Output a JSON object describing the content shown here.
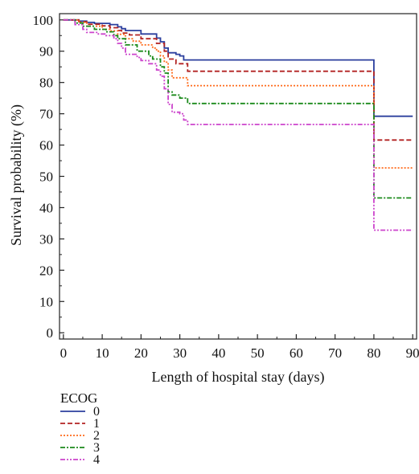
{
  "chart_data": {
    "type": "line",
    "step": true,
    "xlabel": "Length of hospital stay (days)",
    "ylabel": "Survival probability (%)",
    "xlim": [
      -1,
      91
    ],
    "ylim": [
      -2,
      102
    ],
    "xticks": [
      0,
      10,
      20,
      30,
      40,
      50,
      60,
      70,
      80,
      90
    ],
    "yticks": [
      0,
      10,
      20,
      30,
      40,
      50,
      60,
      70,
      80,
      90,
      100
    ],
    "grid": false,
    "legend": {
      "title": "ECOG",
      "placement": "bottom-left"
    },
    "series": [
      {
        "name": "0",
        "color": "#2b3f9e",
        "dash": "solid",
        "points": [
          [
            0,
            100
          ],
          [
            4,
            99.6
          ],
          [
            6,
            99.2
          ],
          [
            8,
            98.9
          ],
          [
            12,
            98.5
          ],
          [
            14,
            97.8
          ],
          [
            15,
            97.2
          ],
          [
            16,
            96.6
          ],
          [
            20,
            95.5
          ],
          [
            24,
            94.2
          ],
          [
            25,
            93
          ],
          [
            26,
            91
          ],
          [
            27,
            89.5
          ],
          [
            29,
            89
          ],
          [
            30,
            88.5
          ],
          [
            31,
            87.2
          ],
          [
            80,
            87.2
          ],
          [
            80,
            69.2
          ],
          [
            90,
            69.2
          ]
        ]
      },
      {
        "name": "1",
        "color": "#b22222",
        "dash": "6,3",
        "points": [
          [
            0,
            100
          ],
          [
            4,
            99.4
          ],
          [
            6,
            98.6
          ],
          [
            10,
            98.1
          ],
          [
            12,
            97.5
          ],
          [
            14,
            96.6
          ],
          [
            15,
            95.8
          ],
          [
            17,
            95.2
          ],
          [
            20,
            94
          ],
          [
            24,
            92.5
          ],
          [
            26,
            90
          ],
          [
            27,
            87.5
          ],
          [
            29,
            86
          ],
          [
            32,
            83.6
          ],
          [
            80,
            83.6
          ],
          [
            80,
            61.6
          ],
          [
            90,
            61.6
          ]
        ]
      },
      {
        "name": "2",
        "color": "#ff6a1a",
        "dash": "2,2",
        "points": [
          [
            0,
            100
          ],
          [
            4,
            99.2
          ],
          [
            6,
            98
          ],
          [
            10,
            97
          ],
          [
            12,
            96.5
          ],
          [
            14,
            95.4
          ],
          [
            16,
            94
          ],
          [
            18,
            93.2
          ],
          [
            20,
            92
          ],
          [
            23,
            91
          ],
          [
            24,
            90
          ],
          [
            25,
            88.5
          ],
          [
            26,
            86.5
          ],
          [
            27,
            84
          ],
          [
            28,
            81.5
          ],
          [
            32,
            79
          ],
          [
            80,
            79
          ],
          [
            80,
            52.7
          ],
          [
            90,
            52.7
          ]
        ]
      },
      {
        "name": "3",
        "color": "#1b8a1b",
        "dash": "6,2,2,2",
        "points": [
          [
            0,
            100
          ],
          [
            3,
            99
          ],
          [
            5,
            98
          ],
          [
            8,
            97
          ],
          [
            11,
            96.2
          ],
          [
            13,
            95
          ],
          [
            14,
            94
          ],
          [
            16,
            92
          ],
          [
            19,
            90
          ],
          [
            22,
            88.5
          ],
          [
            23,
            87.5
          ],
          [
            25,
            85
          ],
          [
            26,
            83
          ],
          [
            27,
            77
          ],
          [
            28,
            76
          ],
          [
            30,
            75
          ],
          [
            32,
            73.3
          ],
          [
            80,
            73.3
          ],
          [
            80,
            43.1
          ],
          [
            90,
            43.1
          ]
        ]
      },
      {
        "name": "4",
        "color": "#cc44cc",
        "dash": "6,2,2,2,2,2",
        "points": [
          [
            0,
            100
          ],
          [
            3,
            98.5
          ],
          [
            5,
            97
          ],
          [
            6,
            96
          ],
          [
            9,
            95.5
          ],
          [
            11,
            95
          ],
          [
            13,
            94
          ],
          [
            14,
            92.5
          ],
          [
            15,
            91
          ],
          [
            16,
            89
          ],
          [
            19,
            88
          ],
          [
            20,
            87
          ],
          [
            22,
            86
          ],
          [
            24,
            84
          ],
          [
            25,
            82
          ],
          [
            26,
            78
          ],
          [
            27,
            73
          ],
          [
            28,
            70.5
          ],
          [
            30,
            70
          ],
          [
            31,
            68
          ],
          [
            32,
            66.6
          ],
          [
            80,
            66.6
          ],
          [
            80,
            32.8
          ],
          [
            90,
            32.8
          ]
        ]
      }
    ]
  }
}
